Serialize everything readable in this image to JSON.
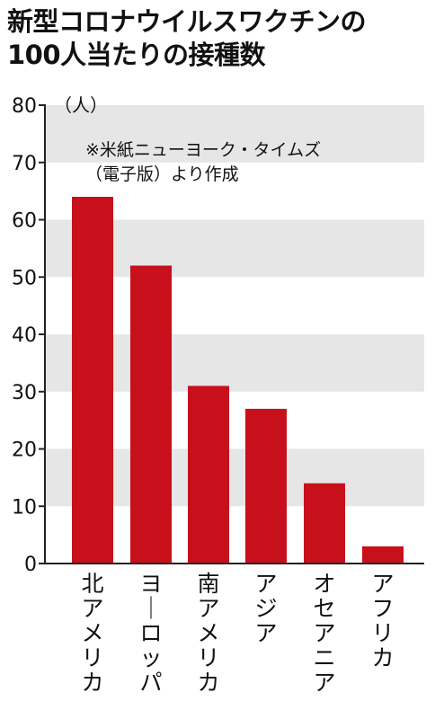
{
  "title": {
    "line1": "新型コロナウイルスワクチンの",
    "line2": "100人当たりの接種数"
  },
  "note": {
    "line1": "※米紙ニューヨーク・タイムズ",
    "line2": "（電子版）より作成"
  },
  "colors": {
    "bar": "#c8101d",
    "band": "#e6e6e6",
    "axis": "#222222"
  },
  "chart_data": {
    "type": "bar",
    "title": "新型コロナウイルスワクチンの100人当たりの接種数",
    "unit": "（人）",
    "categories": [
      "北アメリカ",
      "ヨーロッパ",
      "南アメリカ",
      "アジア",
      "オセアニア",
      "アフリカ"
    ],
    "values": [
      64,
      52,
      31,
      27,
      14,
      3
    ],
    "yticks": [
      0,
      10,
      20,
      30,
      40,
      50,
      60,
      70,
      80
    ],
    "ylim": [
      0,
      80
    ],
    "grid": "alternating horizontal bands",
    "label_orientation": "vertical"
  }
}
